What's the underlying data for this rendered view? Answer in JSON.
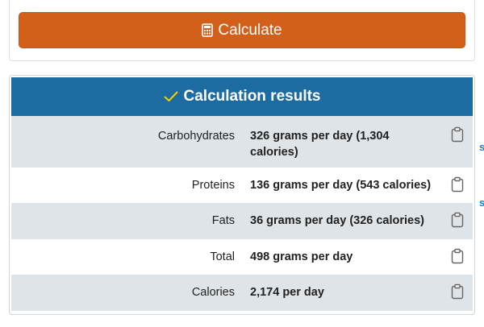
{
  "calculate_button": {
    "label": "Calculate",
    "icon": "calculator-icon"
  },
  "results": {
    "title": "Calculation results",
    "check_color": "#f5d000",
    "header_color": "#1c6ba1",
    "rows": [
      {
        "label": "Carbohydrates",
        "value": "326 grams per day (1,304 calories)"
      },
      {
        "label": "Proteins",
        "value": "136 grams per day (543 calories)"
      },
      {
        "label": "Fats",
        "value": "36 grams per day (326 calories)"
      },
      {
        "label": "Total",
        "value": "498 grams per day"
      },
      {
        "label": "Calories",
        "value": "2,174 per day"
      }
    ]
  },
  "edge_text": [
    "s",
    "s"
  ],
  "accent_colors": {
    "button": "#d2601a",
    "row_shade": "#dfe4e8",
    "link": "#1a7fc2"
  }
}
